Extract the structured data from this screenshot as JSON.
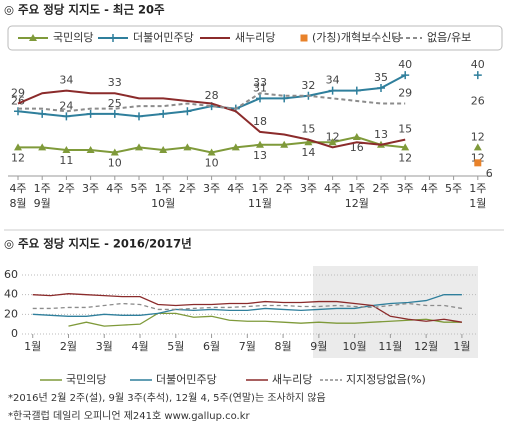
{
  "chart_data": [
    {
      "type": "line",
      "title": "◎  주요 정당 지지도 - 최근 20주",
      "categories": [
        "4주",
        "1주",
        "2주",
        "3주",
        "4주",
        "5주",
        "1주",
        "2주",
        "3주",
        "4주",
        "1주",
        "2주",
        "3주",
        "4주",
        "1주",
        "2주",
        "3주",
        "4주",
        "5주",
        "1주"
      ],
      "months": [
        "8월",
        "9월",
        null,
        null,
        null,
        null,
        "10월",
        null,
        null,
        null,
        "11월",
        null,
        null,
        null,
        "12월",
        null,
        null,
        null,
        null,
        "1월"
      ],
      "ylim": [
        4,
        42
      ],
      "series": [
        {
          "name": "국민의당",
          "color": "#7f9a3a",
          "marker": "triangle",
          "values": [
            12,
            12,
            11,
            11,
            10,
            12,
            11,
            12,
            10,
            12,
            13,
            13,
            14,
            14,
            16,
            13,
            12,
            null,
            null,
            12
          ],
          "value_labels": [
            "12",
            null,
            "11",
            null,
            "10",
            null,
            null,
            null,
            "10",
            null,
            "13",
            null,
            "14",
            null,
            "16",
            null,
            "12",
            null,
            null,
            "12"
          ]
        },
        {
          "name": "더불어민주당",
          "color": "#2f7f9c",
          "marker": "plus",
          "values": [
            26,
            25,
            24,
            25,
            25,
            24,
            25,
            26,
            28,
            27,
            31,
            31,
            32,
            34,
            34,
            35,
            40,
            null,
            null,
            40
          ],
          "value_labels": [
            "26",
            null,
            "24",
            null,
            "25",
            null,
            null,
            null,
            "28",
            null,
            "31",
            null,
            "32",
            "34",
            null,
            "35",
            "40",
            null,
            null,
            "40"
          ]
        },
        {
          "name": "새누리당",
          "color": "#8b2b2b",
          "marker": "none",
          "values": [
            29,
            33,
            34,
            33,
            33,
            31,
            31,
            30,
            29,
            26,
            18,
            17,
            15,
            12,
            14,
            13,
            15,
            null,
            null,
            12
          ],
          "value_labels": [
            "29",
            null,
            "34",
            null,
            "33",
            null,
            null,
            null,
            null,
            null,
            "18",
            null,
            "15",
            "12",
            null,
            "13",
            "15",
            null,
            null,
            "12"
          ]
        },
        {
          "name": "(가칭)개혁보수신당",
          "color": "#e8822a",
          "marker": "square",
          "values": [
            null,
            null,
            null,
            null,
            null,
            null,
            null,
            null,
            null,
            null,
            null,
            null,
            null,
            null,
            null,
            null,
            null,
            null,
            null,
            6
          ],
          "value_labels": [
            null,
            null,
            null,
            null,
            null,
            null,
            null,
            null,
            null,
            null,
            null,
            null,
            null,
            null,
            null,
            null,
            null,
            null,
            null,
            "6"
          ]
        },
        {
          "name": "없음/유보",
          "color": "#8c8c8c",
          "marker": "none",
          "dash": true,
          "values": [
            27,
            27,
            26,
            27,
            27,
            28,
            28,
            29,
            28,
            27,
            33,
            32,
            32,
            31,
            30,
            29,
            29,
            null,
            null,
            26
          ],
          "value_labels": [
            null,
            null,
            null,
            null,
            null,
            null,
            null,
            null,
            null,
            null,
            "33",
            null,
            null,
            null,
            null,
            null,
            "29",
            null,
            null,
            "26"
          ]
        }
      ]
    },
    {
      "type": "line",
      "title": "◎  주요 정당 지지도 - 2016/2017년",
      "x": [
        1,
        1.5,
        2,
        2.5,
        3,
        3.5,
        4,
        4.5,
        5,
        5.5,
        6,
        6.5,
        7,
        7.5,
        8,
        8.5,
        9,
        9.5,
        10,
        10.5,
        11,
        11.5,
        12,
        12.5,
        13
      ],
      "xlim": [
        0.7,
        13.45
      ],
      "xticks": [
        {
          "value": 1,
          "label": "1월"
        },
        {
          "value": 2,
          "label": "2월"
        },
        {
          "value": 3,
          "label": "3월"
        },
        {
          "value": 4,
          "label": "4월"
        },
        {
          "value": 5,
          "label": "5월"
        },
        {
          "value": 6,
          "label": "6월"
        },
        {
          "value": 7,
          "label": "7월"
        },
        {
          "value": 8,
          "label": "8월"
        },
        {
          "value": 9,
          "label": "9월"
        },
        {
          "value": 10,
          "label": "10월"
        },
        {
          "value": 11,
          "label": "11월"
        },
        {
          "value": 12,
          "label": "12월"
        },
        {
          "value": 13,
          "label": "1월"
        }
      ],
      "ylim": [
        0,
        60
      ],
      "yticks": [
        0,
        20,
        40,
        60
      ],
      "grid": true,
      "series": [
        {
          "name": "국민의당",
          "color": "#7f9a3a",
          "values": [
            null,
            null,
            8,
            12,
            8,
            9,
            10,
            21,
            21,
            17,
            18,
            14,
            13,
            13,
            12,
            11,
            12,
            11,
            11,
            12,
            13,
            14,
            15,
            12,
            12
          ]
        },
        {
          "name": "더불어민주당",
          "color": "#2f7f9c",
          "values": [
            20,
            19,
            18,
            18,
            20,
            19,
            19,
            21,
            25,
            24,
            25,
            24,
            24,
            26,
            25,
            24,
            25,
            26,
            26,
            29,
            31,
            32,
            34,
            40,
            40
          ]
        },
        {
          "name": "새누리당",
          "color": "#8b2b2b",
          "values": [
            40,
            39,
            41,
            40,
            39,
            38,
            38,
            30,
            29,
            30,
            30,
            31,
            31,
            33,
            32,
            32,
            33,
            33,
            31,
            29,
            18,
            15,
            13,
            15,
            12
          ]
        },
        {
          "name": "지지정당없음(%)",
          "color": "#8c8c8c",
          "dash": true,
          "values": [
            26,
            26,
            27,
            27,
            29,
            31,
            30,
            25,
            25,
            26,
            27,
            27,
            28,
            29,
            29,
            28,
            28,
            29,
            28,
            27,
            29,
            31,
            29,
            29,
            26
          ]
        }
      ]
    }
  ],
  "notes": [
    "*2016년 2월 2주(설), 9월 3주(추석), 12월 4, 5주(연말)는 조사하지 않음",
    "*한국갤럽 데일리 오피니언 제241호 www.gallup.co.kr"
  ]
}
